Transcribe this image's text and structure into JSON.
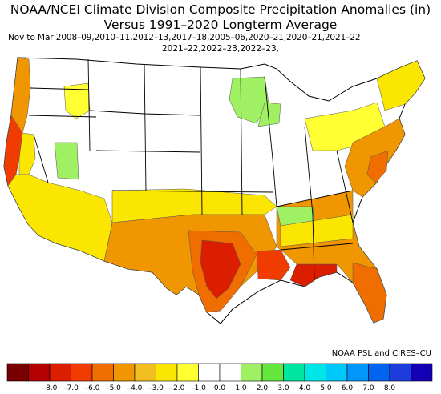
{
  "map": {
    "title_line1": "NOAA/NCEI Climate Division Composite Precipitation Anomalies (in)",
    "title_line2": "Versus 1991–2020 Longterm Average",
    "subtitle_line1": "Nov to Mar  2008–09,2010–11,2012–13,2017–18,2005–06,2020–21,2020–21,2021–22",
    "subtitle_line2": "2021–22,2022–23,2022–23,",
    "credit": "NOAA PSL and CIRES–CU"
  },
  "legend": {
    "colors": [
      "#780000",
      "#b40000",
      "#dc1e00",
      "#f03c00",
      "#f06e00",
      "#f09600",
      "#f0be1e",
      "#fae600",
      "#ffff32",
      "#ffffff",
      "#ffffff",
      "#a0f064",
      "#64e63c",
      "#00e6a0",
      "#00e6e6",
      "#00c8fa",
      "#0096fa",
      "#0064f0",
      "#1e3cdc",
      "#1400b4"
    ],
    "ticks": [
      "–8.0",
      "–7.0",
      "–6.0",
      "–5.0",
      "–4.0",
      "–3.0",
      "–2.0",
      "–1.0",
      "0.0",
      "1.0",
      "2.0",
      "3.0",
      "4.0",
      "5.0",
      "6.0",
      "7.0",
      "8.0"
    ]
  },
  "regions": [
    {
      "name": "pacific-northwest-coast",
      "color": "#f09600"
    },
    {
      "name": "california-coast",
      "color": "#f03c00"
    },
    {
      "name": "southern-plains",
      "color": "#f06e00"
    },
    {
      "name": "texas-gulf",
      "color": "#dc1e00"
    },
    {
      "name": "southeast",
      "color": "#f09600"
    },
    {
      "name": "upper-midwest",
      "color": "#a0f064"
    },
    {
      "name": "mid-atlantic",
      "color": "#f09600"
    }
  ]
}
